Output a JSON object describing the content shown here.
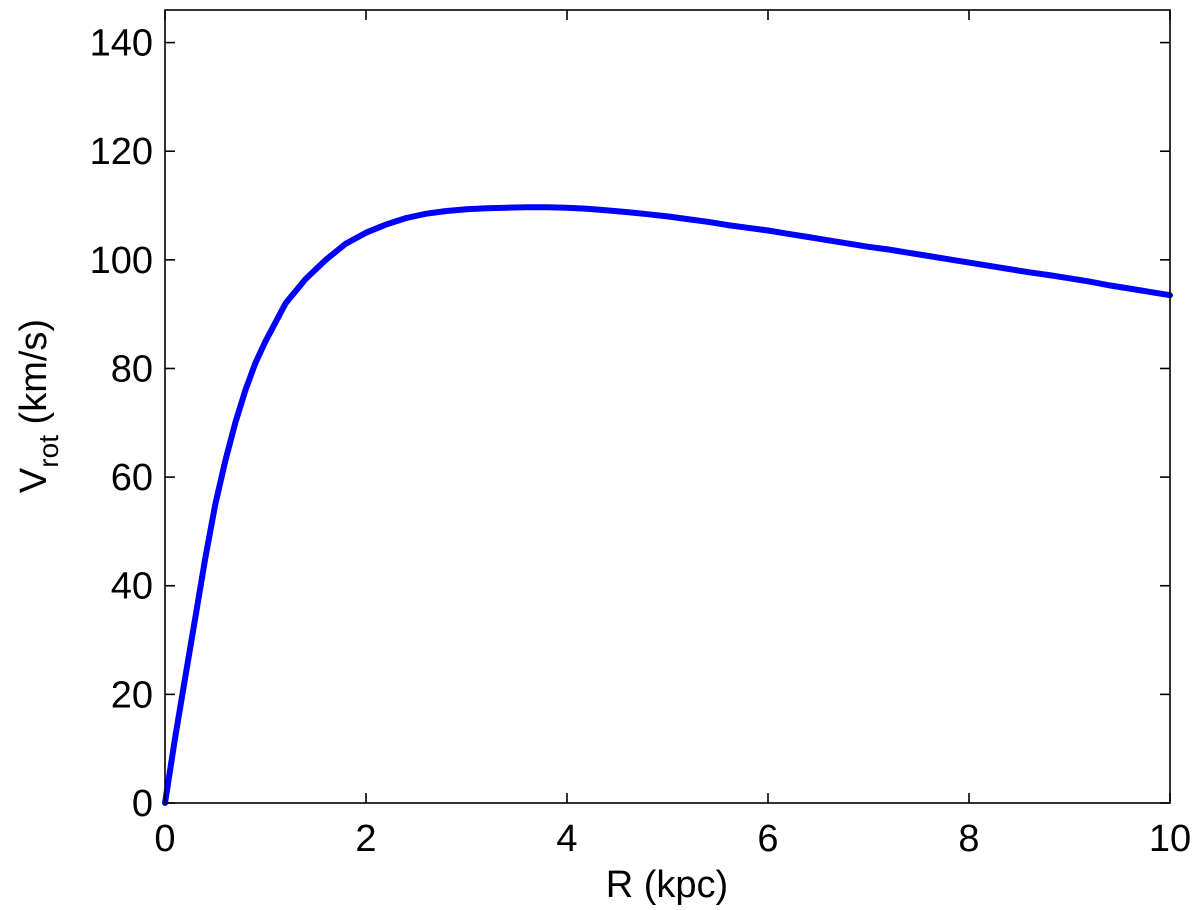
{
  "chart_data": {
    "type": "line",
    "xlabel": "R (kpc)",
    "ylabel": {
      "main": "V",
      "subscript": "rot",
      "unit": " (km/s)"
    },
    "xlim": [
      0,
      10
    ],
    "ylim": [
      0,
      146
    ],
    "xticks": [
      0,
      2,
      4,
      6,
      8,
      10
    ],
    "yticks": [
      0,
      20,
      40,
      60,
      80,
      100,
      120,
      140
    ],
    "grid": false,
    "legend": "none",
    "line_color": "#0000ff",
    "series": [
      {
        "x": [
          0,
          0.1,
          0.2,
          0.3,
          0.4,
          0.5,
          0.6,
          0.7,
          0.8,
          0.9,
          1.0,
          1.2,
          1.4,
          1.6,
          1.8,
          2.0,
          2.2,
          2.4,
          2.6,
          2.8,
          3.0,
          3.2,
          3.4,
          3.6,
          3.8,
          4.0,
          4.2,
          4.4,
          4.6,
          4.8,
          5.0,
          5.2,
          5.4,
          5.6,
          5.8,
          6.0,
          6.2,
          6.4,
          6.6,
          6.8,
          7.0,
          7.2,
          7.4,
          7.6,
          7.8,
          8.0,
          8.2,
          8.4,
          8.6,
          8.8,
          9.0,
          9.2,
          9.4,
          9.6,
          9.8,
          10.0
        ],
        "values": [
          0,
          12,
          23,
          34,
          45,
          55,
          63,
          70,
          76,
          81,
          85,
          92,
          96.5,
          100,
          103,
          105,
          106.5,
          107.7,
          108.5,
          109,
          109.3,
          109.5,
          109.6,
          109.7,
          109.7,
          109.6,
          109.4,
          109.1,
          108.8,
          108.4,
          108,
          107.5,
          107,
          106.4,
          105.9,
          105.4,
          104.8,
          104.2,
          103.6,
          103,
          102.4,
          101.9,
          101.3,
          100.7,
          100.1,
          99.5,
          98.9,
          98.3,
          97.7,
          97.2,
          96.6,
          96,
          95.3,
          94.7,
          94.1,
          93.5
        ]
      }
    ]
  }
}
